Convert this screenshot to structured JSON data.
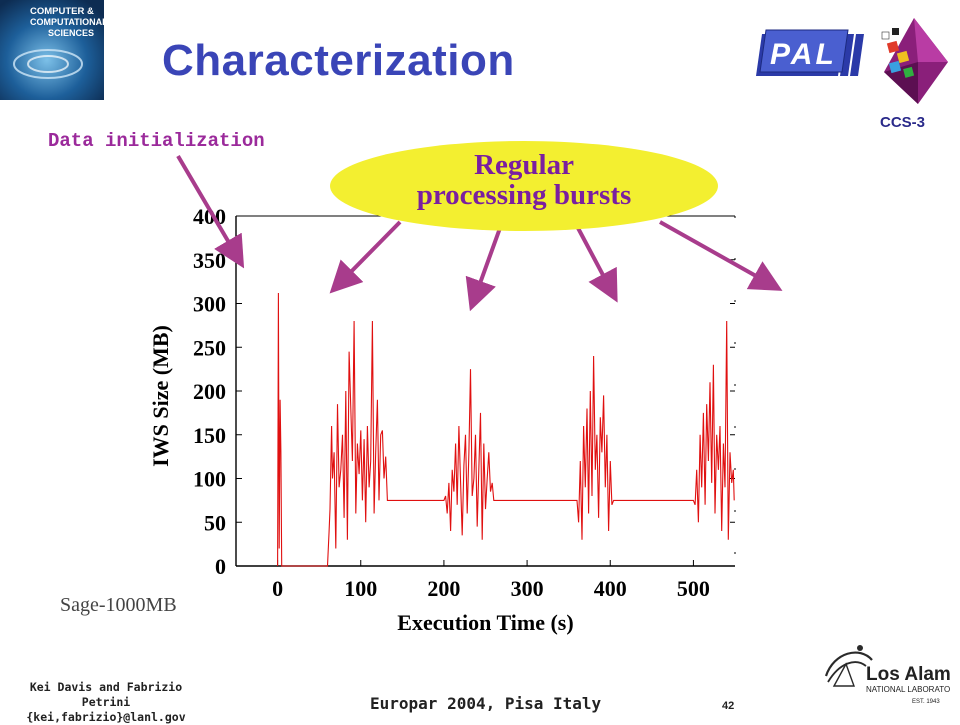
{
  "slide": {
    "title": "Characterization",
    "annotation_data_init": "Data initialization",
    "bubble_line1": "Regular",
    "bubble_line2": "processing bursts",
    "dataset_label": "Sage-1000MB",
    "footer_authors_line1": "Kei Davis and Fabrizio Petrini",
    "footer_authors_line2": "{kei,fabrizio}@lanl.gov",
    "footer_conference": "Europar 2004, Pisa Italy",
    "page_number": "42",
    "ccs_label": "CCS-3",
    "pal_text": "PAL",
    "ccs_logo_text": [
      "COMPUTER &",
      "COMPUTATIONAL",
      "SCIENCES"
    ],
    "lanl_text": [
      "Los Alamos",
      "NATIONAL LABORATORY",
      "EST. 1943"
    ]
  },
  "colors": {
    "title": "#3a45b7",
    "annotation": "#9b2a9b",
    "arrow": "#a83c8c",
    "bubble_fill": "#f3ef30",
    "bubble_text": "#7a1fa0",
    "series": "#e01010"
  },
  "chart_data": {
    "type": "line",
    "xlabel": "Execution Time (s)",
    "ylabel": "IWS Size (MB)",
    "x_ticks": [
      0,
      100,
      200,
      300,
      400,
      500
    ],
    "y_ticks": [
      0,
      50,
      100,
      150,
      200,
      250,
      300,
      350,
      400
    ],
    "xlim": [
      -50,
      550
    ],
    "ylim": [
      0,
      400
    ],
    "grid": false,
    "series": [
      {
        "x": [
          0,
          1,
          2,
          3,
          4,
          5,
          8,
          60,
          62,
          63,
          65,
          66,
          68,
          70,
          72,
          74,
          76,
          78,
          80,
          82,
          84,
          86,
          88,
          90,
          92,
          94,
          96,
          98,
          100,
          102,
          104,
          106,
          108,
          110,
          112,
          114,
          116,
          118,
          120,
          122,
          124,
          126,
          128,
          130,
          132,
          134,
          136,
          138,
          140,
          142,
          200,
          202,
          204,
          206,
          208,
          210,
          212,
          214,
          216,
          218,
          220,
          222,
          224,
          226,
          228,
          230,
          232,
          234,
          236,
          238,
          240,
          242,
          244,
          246,
          248,
          250,
          252,
          254,
          256,
          258,
          260,
          262,
          264,
          266,
          268,
          270,
          272,
          274,
          276,
          278,
          280,
          360,
          362,
          364,
          366,
          368,
          370,
          372,
          374,
          376,
          378,
          380,
          382,
          384,
          386,
          388,
          390,
          392,
          394,
          396,
          398,
          400,
          402,
          404,
          406,
          408,
          410,
          412,
          414,
          416,
          418,
          420,
          422,
          424,
          426,
          428,
          500,
          502,
          504,
          506,
          508,
          510,
          512,
          514,
          516,
          518,
          520,
          522,
          524,
          526,
          528,
          530,
          532,
          534,
          536,
          538,
          540,
          542,
          544,
          546,
          548,
          549
        ],
        "y": [
          0,
          312,
          20,
          190,
          130,
          0,
          0,
          0,
          40,
          65,
          160,
          100,
          130,
          20,
          185,
          90,
          110,
          150,
          55,
          200,
          30,
          245,
          180,
          120,
          280,
          60,
          140,
          105,
          155,
          75,
          145,
          50,
          160,
          90,
          120,
          280,
          60,
          130,
          190,
          75,
          150,
          155,
          100,
          125,
          75,
          75,
          75,
          75,
          75,
          75,
          75,
          80,
          60,
          95,
          40,
          110,
          85,
          140,
          70,
          160,
          95,
          35,
          115,
          150,
          60,
          130,
          225,
          80,
          100,
          150,
          45,
          110,
          175,
          30,
          140,
          65,
          100,
          130,
          85,
          95,
          75,
          75,
          75,
          75,
          75,
          75,
          75,
          75,
          75,
          75,
          75,
          75,
          50,
          120,
          30,
          160,
          90,
          180,
          60,
          200,
          80,
          240,
          110,
          150,
          55,
          170,
          130,
          195,
          90,
          150,
          40,
          120,
          70,
          75,
          75,
          75,
          75,
          75,
          75,
          75,
          75,
          75,
          75,
          75,
          75,
          75,
          75,
          70,
          110,
          50,
          150,
          90,
          175,
          70,
          185,
          120,
          210,
          95,
          230,
          60,
          150,
          110,
          160,
          40,
          140,
          90,
          280,
          30,
          130,
          95,
          110,
          75
        ]
      }
    ]
  }
}
